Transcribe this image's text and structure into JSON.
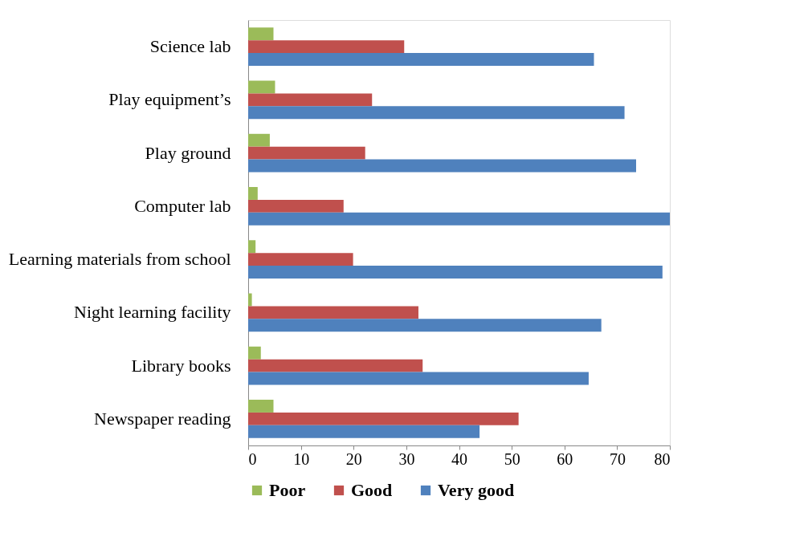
{
  "chart_data": {
    "type": "bar",
    "orientation": "horizontal",
    "categories": [
      "Science lab",
      "Play equipment’s",
      "Play ground",
      "Computer lab",
      "Learning materials from school",
      "Night learning facility",
      "Library books",
      "Newspaper reading"
    ],
    "series": [
      {
        "name": "Poor",
        "color": "#9bbb59",
        "values": [
          4.8,
          5.1,
          4.1,
          1.8,
          1.4,
          0.7,
          2.4,
          4.8
        ]
      },
      {
        "name": "Good",
        "color": "#c0504d",
        "values": [
          29.6,
          23.5,
          22.2,
          18.1,
          19.9,
          32.3,
          33.1,
          51.3
        ]
      },
      {
        "name": "Very good",
        "color": "#4f81bd",
        "values": [
          65.6,
          71.4,
          73.6,
          80.0,
          78.6,
          67.0,
          64.6,
          43.9
        ]
      }
    ],
    "xlim": [
      0,
      80
    ],
    "xticks": [
      0,
      10,
      20,
      30,
      40,
      50,
      60,
      70,
      80
    ],
    "grid": false,
    "legend": "bottom"
  }
}
